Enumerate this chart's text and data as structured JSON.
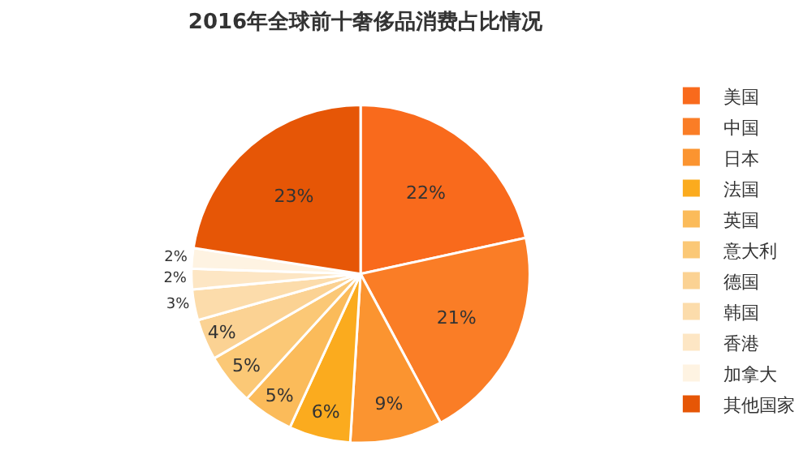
{
  "chart_data": {
    "type": "pie",
    "title": "2016年全球前十奢侈品消费占比情况",
    "categories": [
      "美国",
      "中国",
      "日本",
      "法国",
      "英国",
      "意大利",
      "德国",
      "韩国",
      "香港",
      "加拿大",
      "其他国家"
    ],
    "values": [
      22,
      21,
      9,
      6,
      5,
      5,
      4,
      3,
      2,
      2,
      23
    ],
    "value_labels": [
      "22%",
      "21%",
      "9%",
      "6%",
      "5%",
      "5%",
      "4%",
      "3%",
      "2%",
      "2%",
      "23%"
    ],
    "colors": [
      "#f96a1c",
      "#fa7d26",
      "#fb9430",
      "#fbab1e",
      "#fbbb5a",
      "#fbc876",
      "#fbd293",
      "#fcdcab",
      "#fde6c4",
      "#fef3e2",
      "#e65606"
    ],
    "legend": "right"
  }
}
